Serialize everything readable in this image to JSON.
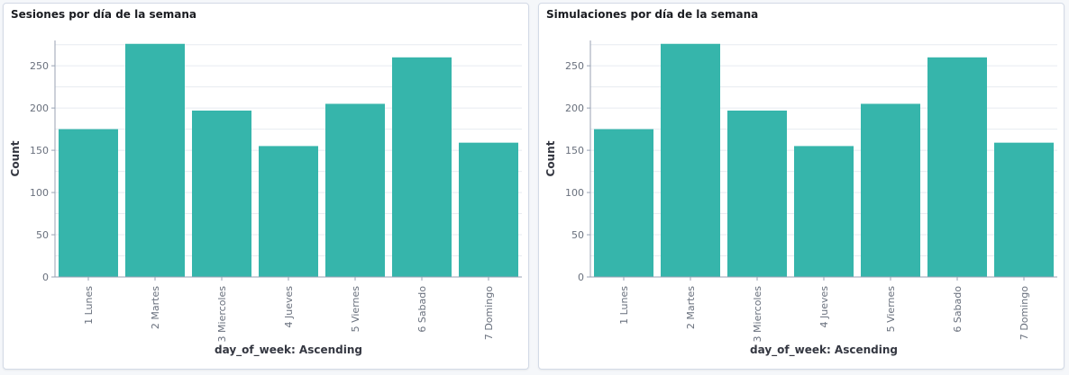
{
  "colors": {
    "bar": "#36b5ab",
    "grid": "#e7ebf0",
    "axis": "#98a2b3",
    "tick_text": "#69707d",
    "label_text": "#343741"
  },
  "chart_data": [
    {
      "type": "bar",
      "title": "Sesiones por día de la semana",
      "xlabel": "day_of_week: Ascending",
      "ylabel": "Count",
      "categories": [
        "1 Lunes",
        "2 Martes",
        "3 Miercoles",
        "4 Jueves",
        "5 Viernes",
        "6 Sabado",
        "7 Domingo"
      ],
      "values": [
        175,
        276,
        197,
        155,
        205,
        260,
        159
      ],
      "yticks": [
        0,
        50,
        100,
        150,
        200,
        250
      ],
      "ylim": [
        0,
        280
      ],
      "grid": true,
      "legend": "none"
    },
    {
      "type": "bar",
      "title": "Simulaciones por día de la semana",
      "xlabel": "day_of_week: Ascending",
      "ylabel": "Count",
      "categories": [
        "1 Lunes",
        "2 Martes",
        "3 Miercoles",
        "4 Jueves",
        "5 Viernes",
        "6 Sabado",
        "7 Domingo"
      ],
      "values": [
        175,
        276,
        197,
        155,
        205,
        260,
        159
      ],
      "yticks": [
        0,
        50,
        100,
        150,
        200,
        250
      ],
      "ylim": [
        0,
        280
      ],
      "grid": true,
      "legend": "none"
    }
  ]
}
